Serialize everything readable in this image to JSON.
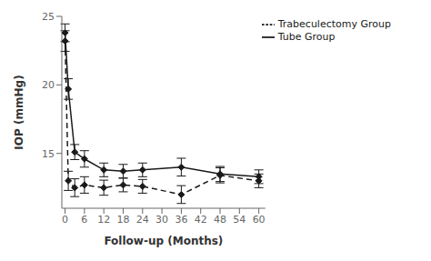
{
  "chart_data": {
    "type": "line",
    "x": [
      0,
      1,
      3,
      6,
      12,
      18,
      24,
      36,
      48,
      60
    ],
    "series": [
      {
        "name": "Tube Group",
        "color": "#1a1a1a",
        "line_style": "solid",
        "marker": "diamond",
        "values": [
          23.8,
          19.7,
          15.1,
          14.6,
          13.8,
          13.7,
          13.8,
          14.0,
          13.5,
          13.3
        ],
        "yerr": [
          0.65,
          0.75,
          0.55,
          0.6,
          0.5,
          0.5,
          0.5,
          0.65,
          0.55,
          0.5
        ]
      },
      {
        "name": "Trabeculectomy Group",
        "color": "#1a1a1a",
        "line_style": "dashed",
        "marker": "diamond",
        "values": [
          23.2,
          13.0,
          12.5,
          12.7,
          12.5,
          12.7,
          12.6,
          12.0,
          13.4,
          13.0
        ],
        "yerr": [
          0.75,
          0.7,
          0.65,
          0.6,
          0.55,
          0.5,
          0.5,
          0.65,
          0.55,
          0.5
        ]
      }
    ],
    "xlabel": "Follow-up (Months)",
    "ylabel": "IOP (mmHg)",
    "xlim": [
      -1,
      62
    ],
    "ylim": [
      11,
      25
    ],
    "xticks": [
      0,
      6,
      12,
      18,
      24,
      30,
      36,
      42,
      48,
      54,
      60
    ],
    "yticks": [
      15,
      20,
      25
    ],
    "grid": false,
    "legend": "upper right"
  }
}
